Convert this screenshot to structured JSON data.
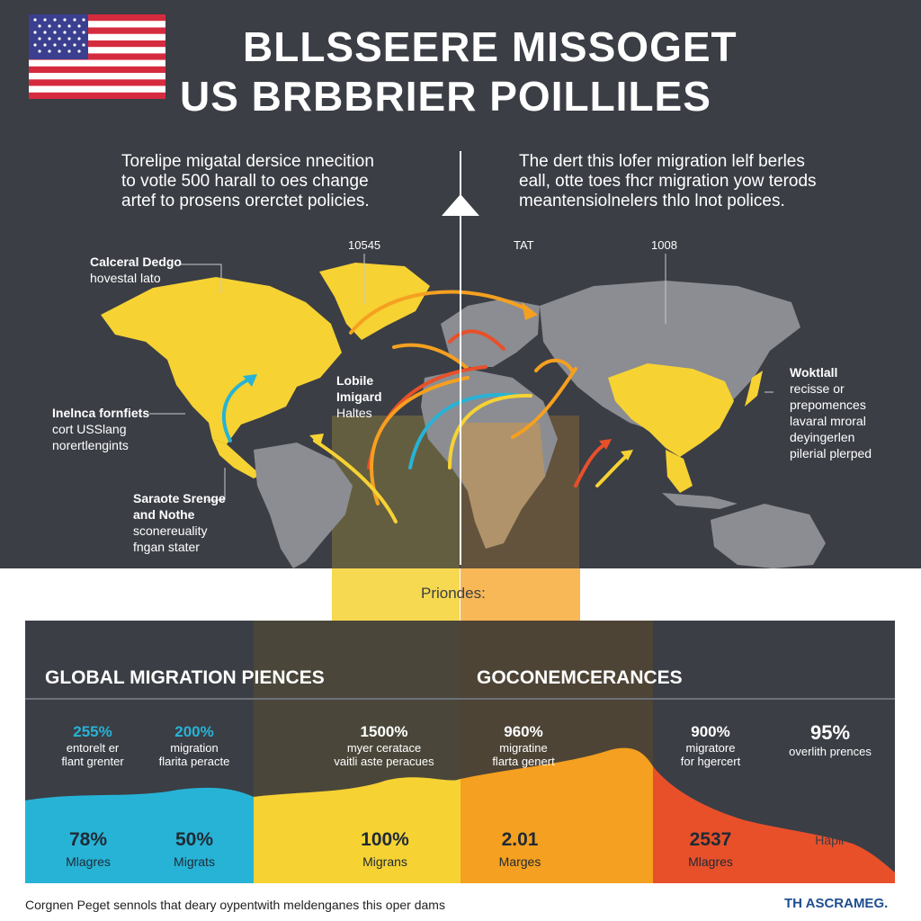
{
  "header": {
    "title_line1": "BLLSSEERE MISSOGET",
    "title_line2": "US BRBBRIER POILLILES"
  },
  "intro": {
    "left_line1": "Torelipe migatal dersice nnecition",
    "left_line2": "to votle 500 harall to oes change",
    "left_line3": "artef to prosens orerctet policies.",
    "right_line1": "The dert this lofer migration lelf berles",
    "right_line2": "eall, otte toes fhcr migration yow terods",
    "right_line3": "meantensiolnelers thlo lnot polices."
  },
  "axis_ticks": [
    "10545",
    "TAT",
    "1008"
  ],
  "map_labels": {
    "top_left_bold": "Calceral Dedgo",
    "top_left_sub": "hovestal lato",
    "mid_left_bold": "Inelnca fornfiets",
    "mid_left_sub1": "cort USSlang",
    "mid_left_sub2": "norertlengints",
    "low_left_bold1": "Saraote Srenge",
    "low_left_bold2": "and Nothe",
    "low_left_sub1": "sconereuality",
    "low_left_sub2": "fngan stater",
    "center_bold1": "Lobile",
    "center_bold2": "Imigard",
    "center_sub": "Haltes",
    "right_bold": "Woktlall",
    "right_sub1": "recisse or",
    "right_sub2": "prepomences",
    "right_sub3": "lavaral mroral",
    "right_sub4": "deyingerlen",
    "right_sub5": "pilerial plerped"
  },
  "priorities_label": "Priondes:",
  "panel": {
    "left_title": "GLOBAL MIGRATION PIENCES",
    "right_title": "GOCONEMCERANCES",
    "top_stats": [
      {
        "pct": "255%",
        "sub1": "entorelt er",
        "sub2": "flant grenter"
      },
      {
        "pct": "200%",
        "sub1": "migration",
        "sub2": "flarita peracte"
      },
      {
        "pct": "1500%",
        "sub1": "myer ceratace",
        "sub2": "vaitli aste peracues"
      },
      {
        "pct": "960%",
        "sub1": "migratine",
        "sub2": "flarta genert"
      },
      {
        "pct": "900%",
        "sub1": "migratore",
        "sub2": "for hgercert"
      },
      {
        "pct": "95%",
        "sub1": "overlith prences",
        "sub2": ""
      }
    ],
    "bottom_stats": [
      {
        "pct": "78%",
        "sub": "Mlagres"
      },
      {
        "pct": "50%",
        "sub": "Migrats"
      },
      {
        "pct": "100%",
        "sub": "Migrans"
      },
      {
        "pct": "2.01",
        "sub": "Marges"
      },
      {
        "pct": "2537",
        "sub": "Mlagres"
      },
      {
        "pct": "",
        "sub": "Hapir"
      }
    ]
  },
  "footer": {
    "note": "Corgnen Peget sennols that deary oypentwith meldenganes this oper dams",
    "brand": "TH ASCRAMEG."
  },
  "colors": {
    "background_dark": "#3b3e45",
    "yellow": "#f6d233",
    "orange": "#f5a020",
    "red": "#e8502a",
    "cyan": "#27b3d6",
    "land_grey": "#8b8d92"
  }
}
